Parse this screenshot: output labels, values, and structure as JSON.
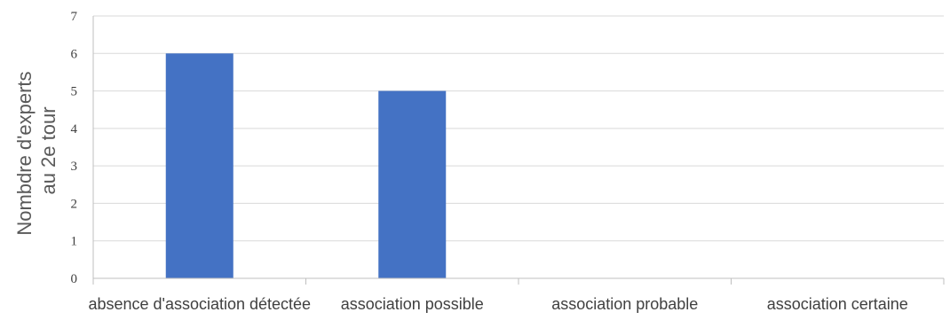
{
  "chart_data": {
    "type": "bar",
    "title": "",
    "xlabel": "",
    "ylabel_lines": [
      "Nombdre d'experts",
      "au 2e tour"
    ],
    "categories": [
      "absence d'association détectée",
      "association possible",
      "association probable",
      "association certaine"
    ],
    "values": [
      6,
      5,
      0,
      0
    ],
    "ylim": [
      0,
      7
    ],
    "yticks": [
      0,
      1,
      2,
      3,
      4,
      5,
      6,
      7
    ],
    "grid": true,
    "legend": "none",
    "bar_color": "#4472c4",
    "grid_color": "#d9d9d9",
    "axis_color": "#bfbfbf"
  }
}
